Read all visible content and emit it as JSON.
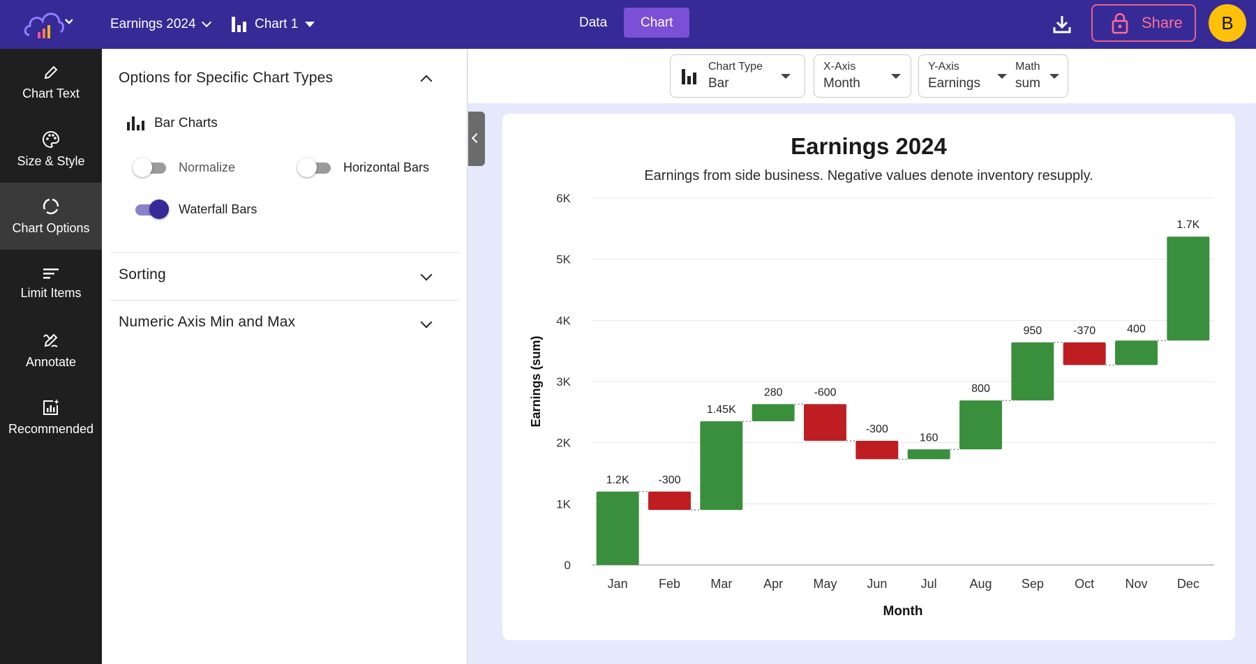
{
  "topbar": {
    "project_name": "Earnings 2024",
    "chart_name": "Chart 1",
    "tabs": [
      {
        "label": "Data",
        "active": false
      },
      {
        "label": "Chart",
        "active": true
      }
    ],
    "share_label": "Share",
    "avatar_initial": "B"
  },
  "sidebar": {
    "items": [
      {
        "label": "Chart Text",
        "icon": "pencil-icon"
      },
      {
        "label": "Size & Style",
        "icon": "palette-icon"
      },
      {
        "label": "Chart Options",
        "icon": "options-ring-icon",
        "active": true
      },
      {
        "label": "Limit Items",
        "icon": "list-filter-icon"
      },
      {
        "label": "Annotate",
        "icon": "annotate-icon"
      },
      {
        "label": "Recommended",
        "icon": "recommended-chart-icon"
      }
    ]
  },
  "options_panel": {
    "section_specific": {
      "title": "Options for Specific Chart Types",
      "expanded": true
    },
    "bar_charts_label": "Bar Charts",
    "toggles": {
      "normalize": {
        "label": "Normalize",
        "on": false
      },
      "horizontal": {
        "label": "Horizontal Bars",
        "on": false
      },
      "waterfall": {
        "label": "Waterfall Bars",
        "on": true
      }
    },
    "section_sorting": {
      "title": "Sorting",
      "expanded": false
    },
    "section_axis": {
      "title": "Numeric Axis Min and Max",
      "expanded": false
    }
  },
  "selectors": {
    "chart_type": {
      "caption": "Chart Type",
      "value": "Bar"
    },
    "x_axis": {
      "caption": "X-Axis",
      "value": "Month"
    },
    "y_axis": {
      "caption": "Y-Axis",
      "value": "Earnings"
    },
    "math": {
      "caption": "Math",
      "value": "sum"
    }
  },
  "colors": {
    "topbar": "#362a96",
    "accent": "#7b4fd6",
    "positive": "#3a8f3c",
    "negative": "#be1e22",
    "share": "#ff6f96",
    "avatar": "#ffc107"
  },
  "chart_data": {
    "type": "bar",
    "waterfall": true,
    "title": "Earnings 2024",
    "subtitle": "Earnings from side business. Negative values denote inventory resupply.",
    "xlabel": "Month",
    "ylabel": "Earnings (sum)",
    "ylim": [
      0,
      6000
    ],
    "yticks": [
      {
        "value": 0,
        "label": "0"
      },
      {
        "value": 1000,
        "label": "1K"
      },
      {
        "value": 2000,
        "label": "2K"
      },
      {
        "value": 3000,
        "label": "3K"
      },
      {
        "value": 4000,
        "label": "4K"
      },
      {
        "value": 5000,
        "label": "5K"
      },
      {
        "value": 6000,
        "label": "6K"
      }
    ],
    "categories": [
      "Jan",
      "Feb",
      "Mar",
      "Apr",
      "May",
      "Jun",
      "Jul",
      "Aug",
      "Sep",
      "Oct",
      "Nov",
      "Dec"
    ],
    "values": [
      1200,
      -300,
      1450,
      280,
      -600,
      -300,
      160,
      800,
      950,
      -370,
      400,
      1700
    ],
    "data_labels": [
      "1.2K",
      "-300",
      "1.45K",
      "280",
      "-600",
      "-300",
      "160",
      "800",
      "950",
      "-370",
      "400",
      "1.7K"
    ],
    "grid": true,
    "legend": "none"
  }
}
